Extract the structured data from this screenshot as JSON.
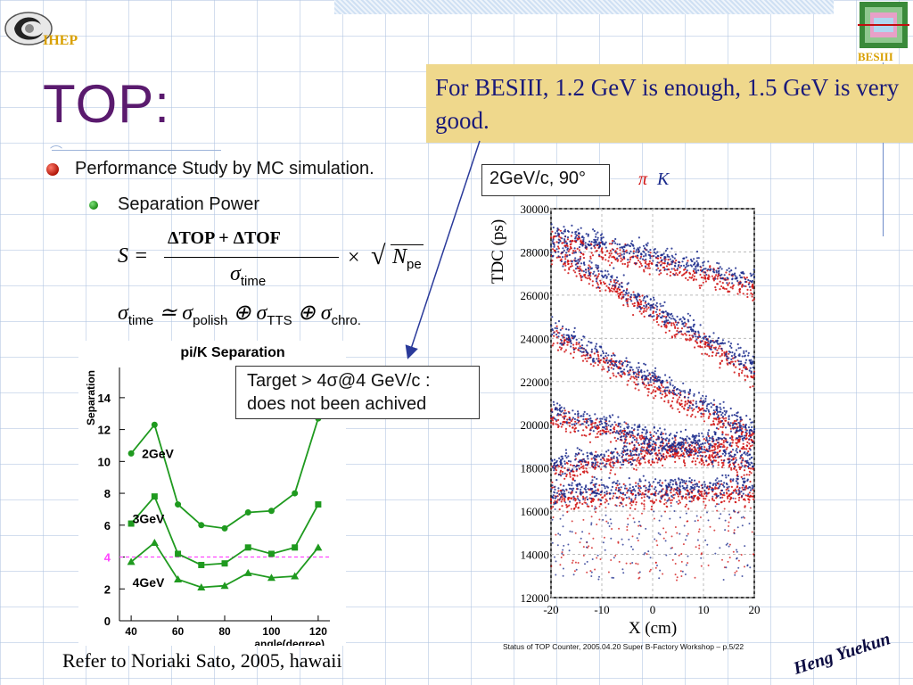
{
  "logo": {
    "ihep": "IHEP",
    "besiii": "BESIII"
  },
  "title": "TOP:",
  "callout": "For BESIII, 1.2 GeV is enough, 1.5 GeV is very good.",
  "bullets": {
    "main": "Performance Study by MC simulation.",
    "sub": "Separation Power"
  },
  "formula": {
    "lhs": "S =",
    "numerator": "ΔTOP + ΔTOF",
    "denominator_sym": "σ",
    "denominator_sub": "time",
    "times": "×",
    "sqrt": "√",
    "rad_sym": "N",
    "rad_sub": "pe"
  },
  "formula2": {
    "s1": "σ",
    "sub1": "time",
    "rel": " ≃ ",
    "s2": "σ",
    "sub2": "polish",
    "op1": " ⊕ ",
    "s3": "σ",
    "sub3": "TTS",
    "op2": " ⊕ ",
    "s4": "σ",
    "sub4": "chro."
  },
  "target_box": {
    "line1": "Target > 4σ@4 GeV/c :",
    "line2": "does not been achived"
  },
  "tdc_label": "2GeV/c, 90°",
  "legend": {
    "pi": "π",
    "k": "K"
  },
  "caption": "Status of TOP Counter, 2005.04.20 Super B-Factory Workshop – p.5/22",
  "refer": "Refer to Noriaki Sato, 2005, hawaii",
  "signature": "Heng Yuekun",
  "colors": {
    "callout_bg": "#efd88c",
    "title": "#5a1a6e",
    "green": "#1f9a1f",
    "pi": "#d01010",
    "k": "#1a2a8c"
  },
  "chart_data": [
    {
      "type": "line",
      "title": "pi/K Separation",
      "xlabel": "angle(degree)",
      "ylabel": "Separation",
      "xlim": [
        35,
        125
      ],
      "ylim": [
        0,
        15
      ],
      "xticks": [
        40,
        60,
        80,
        100,
        120
      ],
      "yticks": [
        0,
        2,
        4,
        6,
        8,
        10,
        12,
        14
      ],
      "reference_line": {
        "y": 4,
        "label": "4",
        "color": "#ff44ff"
      },
      "x": [
        40,
        50,
        60,
        70,
        80,
        90,
        100,
        110,
        120
      ],
      "series": [
        {
          "name": "2GeV",
          "marker": "circle",
          "values": [
            10.5,
            12.3,
            7.3,
            6.0,
            5.8,
            6.8,
            6.9,
            8.0,
            12.7
          ]
        },
        {
          "name": "3GeV",
          "marker": "square",
          "values": [
            6.1,
            7.8,
            4.2,
            3.5,
            3.6,
            4.6,
            4.2,
            4.6,
            7.3
          ]
        },
        {
          "name": "4GeV",
          "marker": "triangle",
          "values": [
            3.7,
            4.9,
            2.6,
            2.1,
            2.2,
            3.0,
            2.7,
            2.8,
            4.6
          ]
        }
      ]
    },
    {
      "type": "scatter",
      "xlabel": "X (cm)",
      "ylabel": "TDC (ps)",
      "xlim": [
        -20,
        20
      ],
      "ylim": [
        12000,
        30000
      ],
      "xticks": [
        -20,
        -10,
        0,
        10,
        20
      ],
      "yticks": [
        12000,
        14000,
        16000,
        18000,
        20000,
        22000,
        24000,
        26000,
        28000,
        30000
      ],
      "series": [
        {
          "name": "π",
          "color": "#d01010",
          "bands": [
            [
              [
                -20,
                16600
              ],
              [
                20,
                16800
              ]
            ],
            [
              [
                -20,
                17800
              ],
              [
                20,
                19300
              ]
            ],
            [
              [
                -20,
                20300
              ],
              [
                20,
                17900
              ]
            ],
            [
              [
                -20,
                24100
              ],
              [
                20,
                19400
              ]
            ],
            [
              [
                -20,
                28000
              ],
              [
                20,
                22300
              ]
            ],
            [
              [
                -20,
                28600
              ],
              [
                20,
                26300
              ]
            ]
          ]
        },
        {
          "name": "K",
          "color": "#1a2a8c",
          "bands": [
            [
              [
                -20,
                16900
              ],
              [
                20,
                17200
              ]
            ],
            [
              [
                -20,
                18100
              ],
              [
                20,
                19700
              ]
            ],
            [
              [
                -20,
                20600
              ],
              [
                20,
                18300
              ]
            ],
            [
              [
                -20,
                24400
              ],
              [
                20,
                19800
              ]
            ],
            [
              [
                -20,
                28300
              ],
              [
                20,
                22700
              ]
            ],
            [
              [
                -20,
                29000
              ],
              [
                20,
                26700
              ]
            ]
          ]
        }
      ]
    }
  ]
}
